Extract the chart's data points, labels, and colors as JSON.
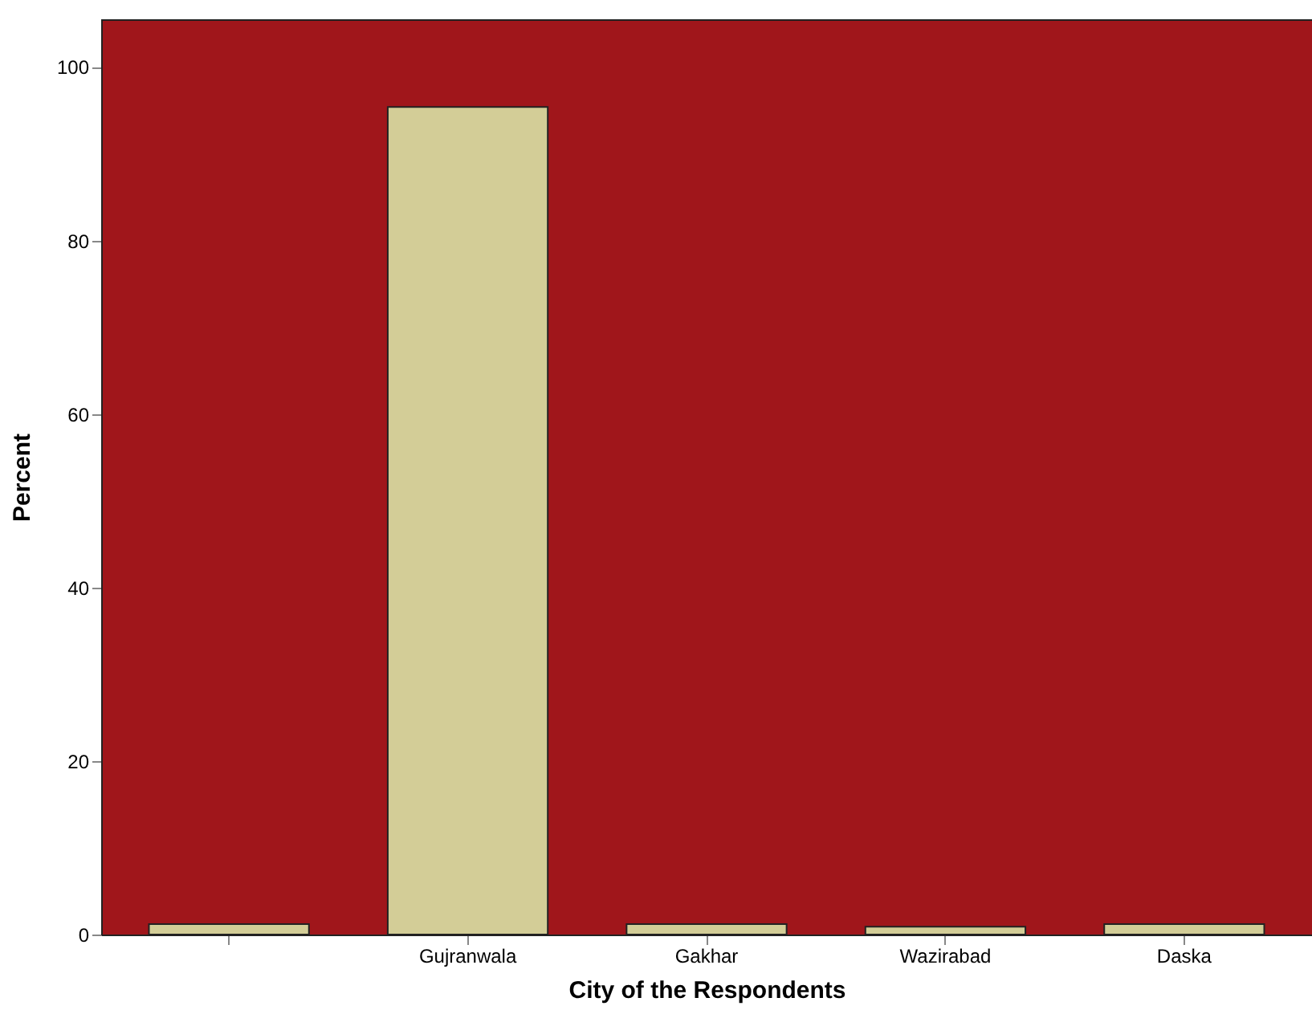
{
  "chart_data": {
    "type": "bar",
    "xlabel": "City of the Respondents",
    "ylabel": "Percent",
    "categories": [
      null,
      "Gujranwala",
      "Gakhar",
      "Wazirabad",
      "Daska"
    ],
    "values": [
      1.2,
      95.4,
      1.2,
      0.9,
      1.2
    ],
    "color": "#d3cd97",
    "ylim": [
      0,
      105.5
    ],
    "yticks": [
      0,
      20,
      40,
      60,
      80,
      100
    ],
    "grid": false
  }
}
